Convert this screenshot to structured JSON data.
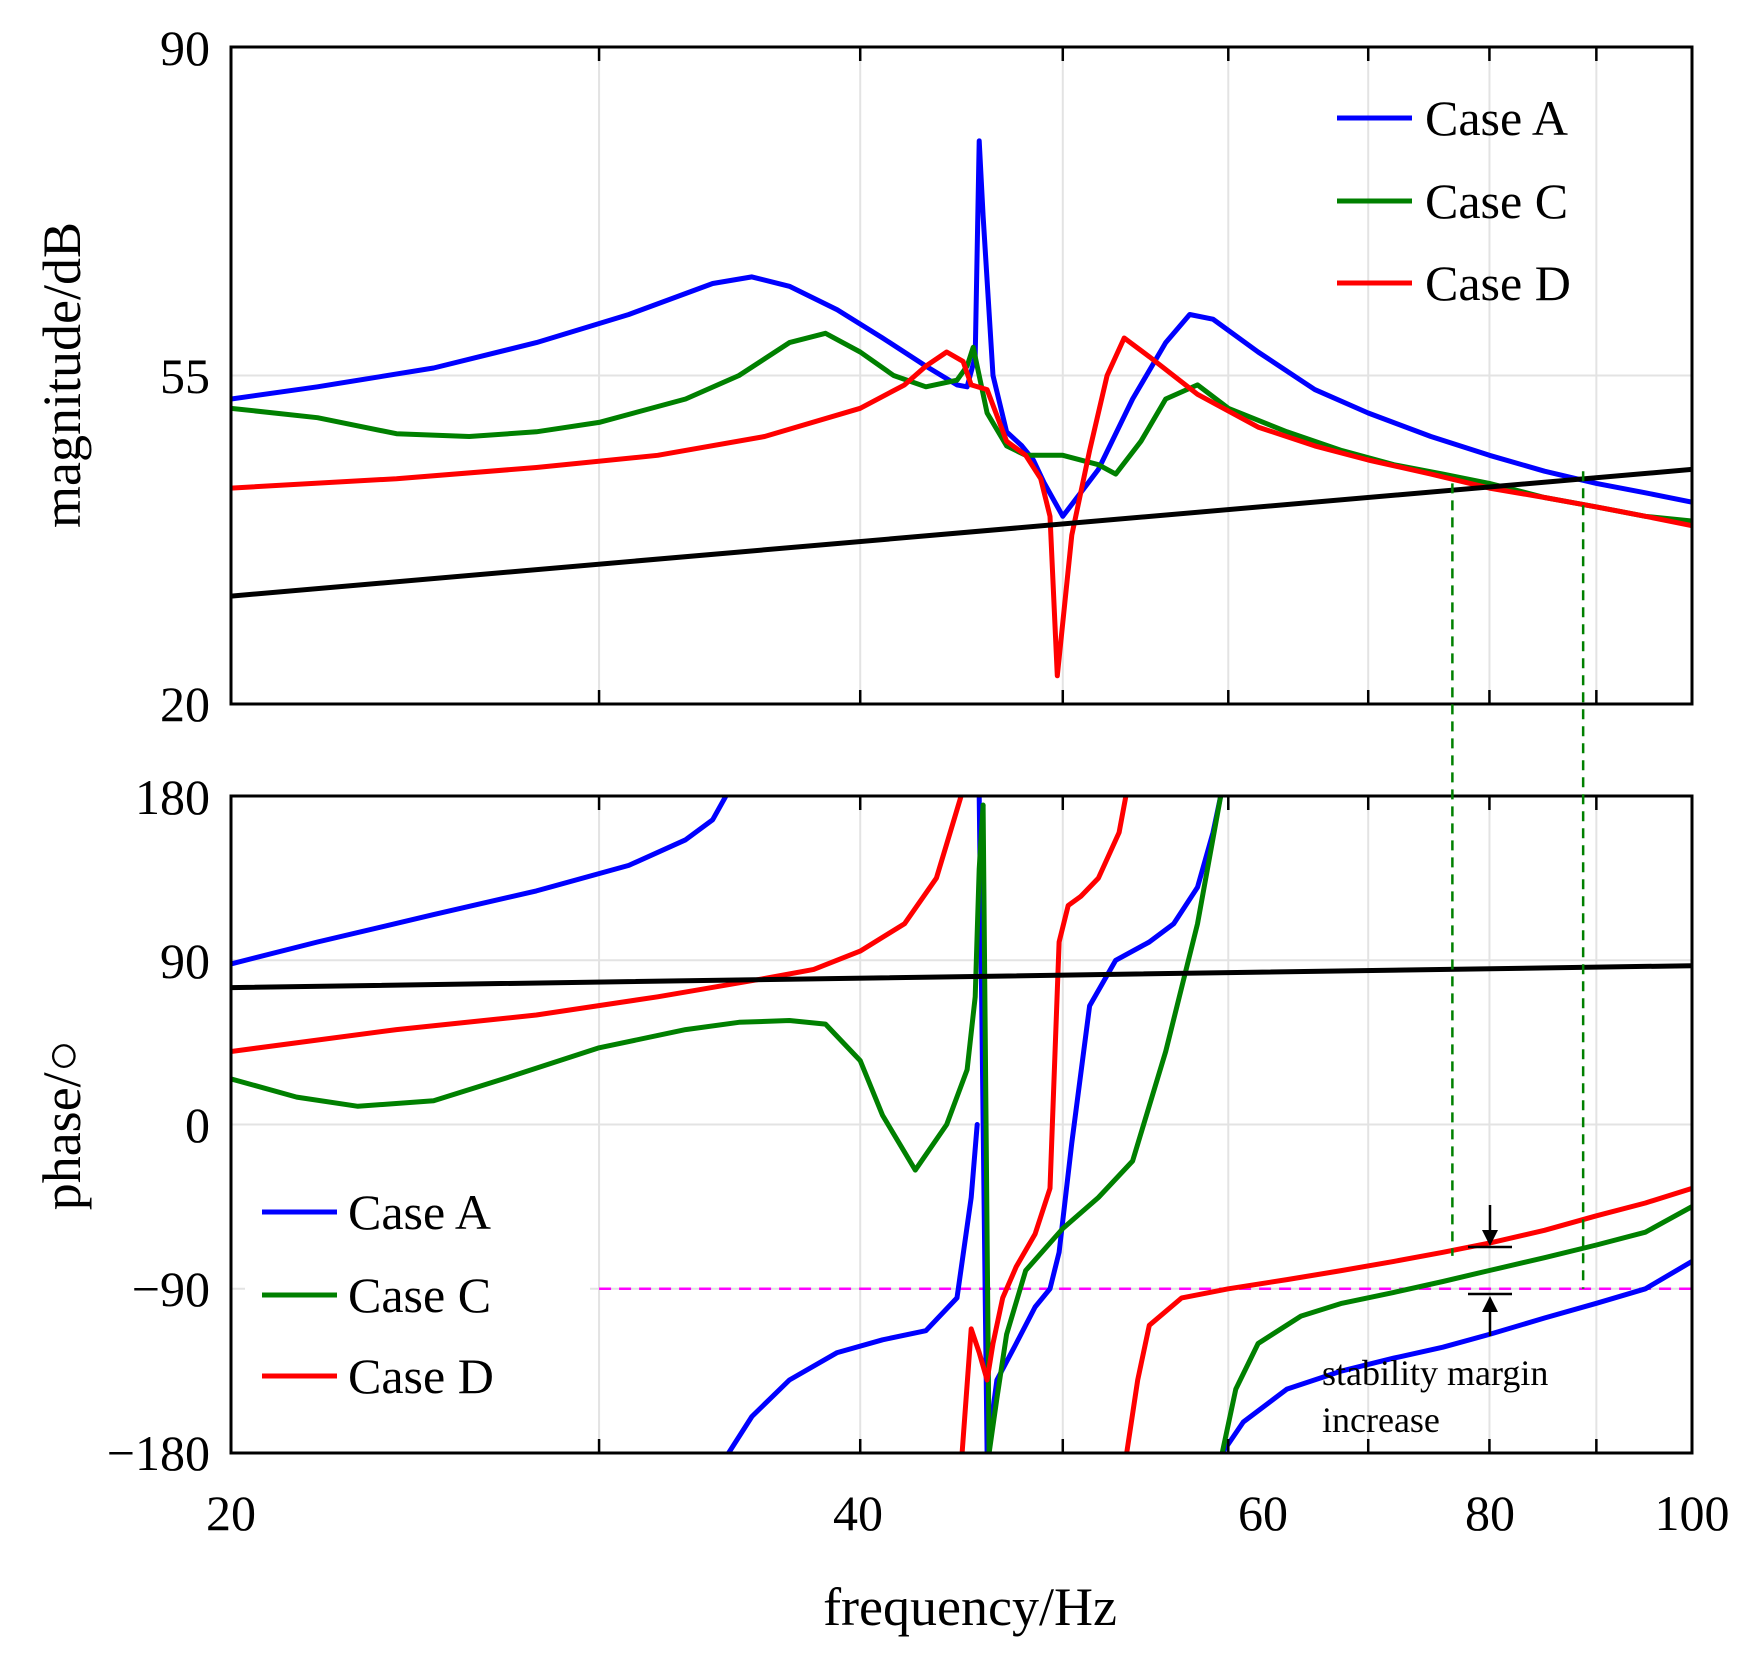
{
  "chart_data": [
    {
      "type": "line",
      "xlabel": "",
      "ylabel": "magnitude/dB",
      "x_scale": "log",
      "xlim": [
        20,
        100
      ],
      "ylim": [
        20,
        90
      ],
      "yticks": [
        "20",
        "55",
        "90"
      ],
      "grid": true,
      "legend_position": "top-right",
      "series": [
        {
          "name": "Case A",
          "color": "#0000ff",
          "x": [
            20,
            22,
            25,
            28,
            31,
            34,
            35.5,
            37,
            39,
            41,
            43,
            44.5,
            45,
            45.4,
            45.6,
            45.8,
            46.3,
            47,
            47.8,
            48.4,
            49,
            50,
            52,
            54,
            56,
            57.5,
            59,
            62,
            66,
            70,
            75,
            80,
            85,
            90,
            95,
            100
          ],
          "y": [
            52.5,
            53.8,
            55.8,
            58.5,
            61.5,
            64.8,
            65.5,
            64.5,
            62,
            59,
            56,
            54,
            53.8,
            57,
            80,
            72,
            55,
            49,
            47.5,
            46,
            43.5,
            40,
            45,
            52.5,
            58.5,
            61.5,
            61,
            57.5,
            53.5,
            51,
            48.5,
            46.5,
            44.8,
            43.5,
            42.5,
            41.5
          ]
        },
        {
          "name": "Case C",
          "color": "#008000",
          "x": [
            20,
            22,
            24,
            26,
            28,
            30,
            33,
            35,
            37,
            38.5,
            40,
            41.5,
            43,
            44.5,
            45,
            45.3,
            46,
            47,
            48,
            50,
            52,
            53,
            54.5,
            56,
            58,
            60,
            64,
            68,
            72,
            76,
            80,
            85,
            90,
            95,
            100
          ],
          "y": [
            51.5,
            50.5,
            48.8,
            48.5,
            49,
            50,
            52.5,
            55,
            58.5,
            59.5,
            57.5,
            55,
            53.8,
            54.5,
            56,
            58,
            51,
            47.5,
            46.5,
            46.5,
            45.5,
            44.5,
            48,
            52.5,
            54,
            51.5,
            49,
            47,
            45.5,
            44.5,
            43.5,
            42,
            41,
            40,
            39.5
          ]
        },
        {
          "name": "Case D",
          "color": "#ff0000",
          "x": [
            20,
            24,
            28,
            32,
            36,
            40,
            42,
            43,
            44,
            44.8,
            45.2,
            46,
            47,
            48,
            48.8,
            49.3,
            49.7,
            50.5,
            51.5,
            52.5,
            53.5,
            55,
            58,
            62,
            66,
            70,
            75,
            80,
            85,
            90,
            95,
            100
          ],
          "y": [
            43,
            44,
            45.2,
            46.5,
            48.5,
            51.5,
            54,
            56,
            57.5,
            56.5,
            54,
            53.5,
            48,
            46.5,
            44,
            40,
            23,
            38,
            47,
            55,
            59,
            57,
            53,
            49.5,
            47.5,
            46,
            44.5,
            43,
            42,
            41,
            40,
            39
          ]
        },
        {
          "name": "",
          "color": "#000000",
          "x": [
            20,
            100
          ],
          "y": [
            31.5,
            45
          ]
        }
      ]
    },
    {
      "type": "line",
      "xlabel": "frequency/Hz",
      "ylabel": "phase/○",
      "x_scale": "log",
      "xlim": [
        20,
        100
      ],
      "ylim": [
        -180,
        180
      ],
      "xticks": [
        "20",
        "40",
        "60",
        "80",
        "100"
      ],
      "yticks": [
        "−180",
        "−90",
        "0",
        "90",
        "180"
      ],
      "grid": true,
      "legend_position": "bottom-left",
      "series": [
        {
          "name": "Case A",
          "color": "#0000ff",
          "segments": [
            {
              "x": [
                20,
                22,
                25,
                28,
                31,
                33,
                34,
                34.5
              ],
              "y": [
                88,
                100,
                115,
                128,
                142,
                156,
                167,
                180
              ]
            },
            {
              "x": [
                34.6,
                35.5,
                37,
                39,
                41,
                43,
                44.5,
                45.2,
                45.5
              ],
              "y": [
                -180,
                -160,
                -140,
                -125,
                -118,
                -113,
                -95,
                -40,
                0
              ]
            },
            {
              "x": [
                45.6,
                46,
                46.5,
                47.5,
                48.5,
                49.3,
                49.8,
                50.5,
                51.5,
                53,
                55,
                56.5,
                58,
                59,
                59.5
              ],
              "y": [
                180,
                -180,
                -140,
                -120,
                -100,
                -90,
                -70,
                -10,
                65,
                90,
                100,
                110,
                130,
                160,
                180
              ]
            },
            {
              "x": [
                59.6,
                61,
                64,
                68,
                72,
                76,
                80,
                85,
                90,
                95,
                100
              ],
              "y": [
                -180,
                -163,
                -145,
                -135,
                -128,
                -122,
                -115,
                -106,
                -98,
                -90,
                -75
              ]
            }
          ]
        },
        {
          "name": "Case C",
          "color": "#008000",
          "segments": [
            {
              "x": [
                20,
                21.5,
                23,
                25,
                27,
                30,
                33,
                35,
                37,
                38.5,
                40,
                41,
                42.5,
                44,
                45,
                45.4,
                45.6,
                45.8
              ],
              "y": [
                25,
                15,
                10,
                13,
                25,
                42,
                52,
                56,
                57,
                55,
                35,
                5,
                -25,
                0,
                30,
                70,
                140,
                175
              ]
            },
            {
              "x": [
                45.8,
                46.1,
                46.5,
                47,
                48,
                50,
                52,
                54,
                56,
                58,
                59.5
              ],
              "y": [
                175,
                -180,
                -150,
                -115,
                -80,
                -57,
                -40,
                -20,
                40,
                110,
                180
              ]
            },
            {
              "x": [
                59.6,
                60.5,
                62,
                65,
                68,
                72,
                76,
                80,
                85,
                90,
                95,
                100
              ],
              "y": [
                -180,
                -145,
                -120,
                -105,
                -98,
                -92,
                -86,
                -80,
                -73,
                -66,
                -59,
                -45
              ]
            }
          ]
        },
        {
          "name": "Case D",
          "color": "#ff0000",
          "segments": [
            {
              "x": [
                20,
                24,
                28,
                32,
                36,
                38,
                40,
                42,
                43.5,
                44.3,
                44.7
              ],
              "y": [
                40,
                52,
                60,
                70,
                80,
                85,
                95,
                110,
                135,
                165,
                180
              ]
            },
            {
              "x": [
                44.75,
                45.2,
                45.6,
                46,
                46.3,
                46.8,
                47.5,
                48.5,
                49.3,
                49.8,
                50.3,
                51,
                52,
                53.2,
                53.6
              ],
              "y": [
                -180,
                -112,
                -125,
                -140,
                -120,
                -95,
                -78,
                -60,
                -35,
                100,
                120,
                125,
                135,
                160,
                180
              ]
            },
            {
              "x": [
                53.65,
                54.3,
                55,
                57,
                60,
                64,
                68,
                72,
                76,
                80,
                85,
                90,
                95,
                100
              ],
              "y": [
                -180,
                -140,
                -110,
                -95,
                -90,
                -85,
                -80,
                -75,
                -70,
                -65,
                -58,
                -50,
                -43,
                -35
              ]
            }
          ]
        },
        {
          "name": "",
          "color": "#000000",
          "segments": [
            {
              "x": [
                20,
                100
              ],
              "y": [
                75,
                87
              ]
            }
          ]
        }
      ],
      "reference_line": {
        "y": -90,
        "color": "#ff00ff",
        "style": "dashed",
        "x_range": [
          30,
          100
        ]
      },
      "annotation": {
        "lines": [
          "stability margin",
          "increase"
        ]
      }
    }
  ],
  "crossover_guides": {
    "color": "#008000",
    "style": "dashed",
    "x": [
      76.8,
      88.7
    ]
  },
  "legend_top": [
    "Case A",
    "Case C",
    "Case D"
  ],
  "legend_bottom": [
    "Case A",
    "Case C",
    "Case D"
  ]
}
